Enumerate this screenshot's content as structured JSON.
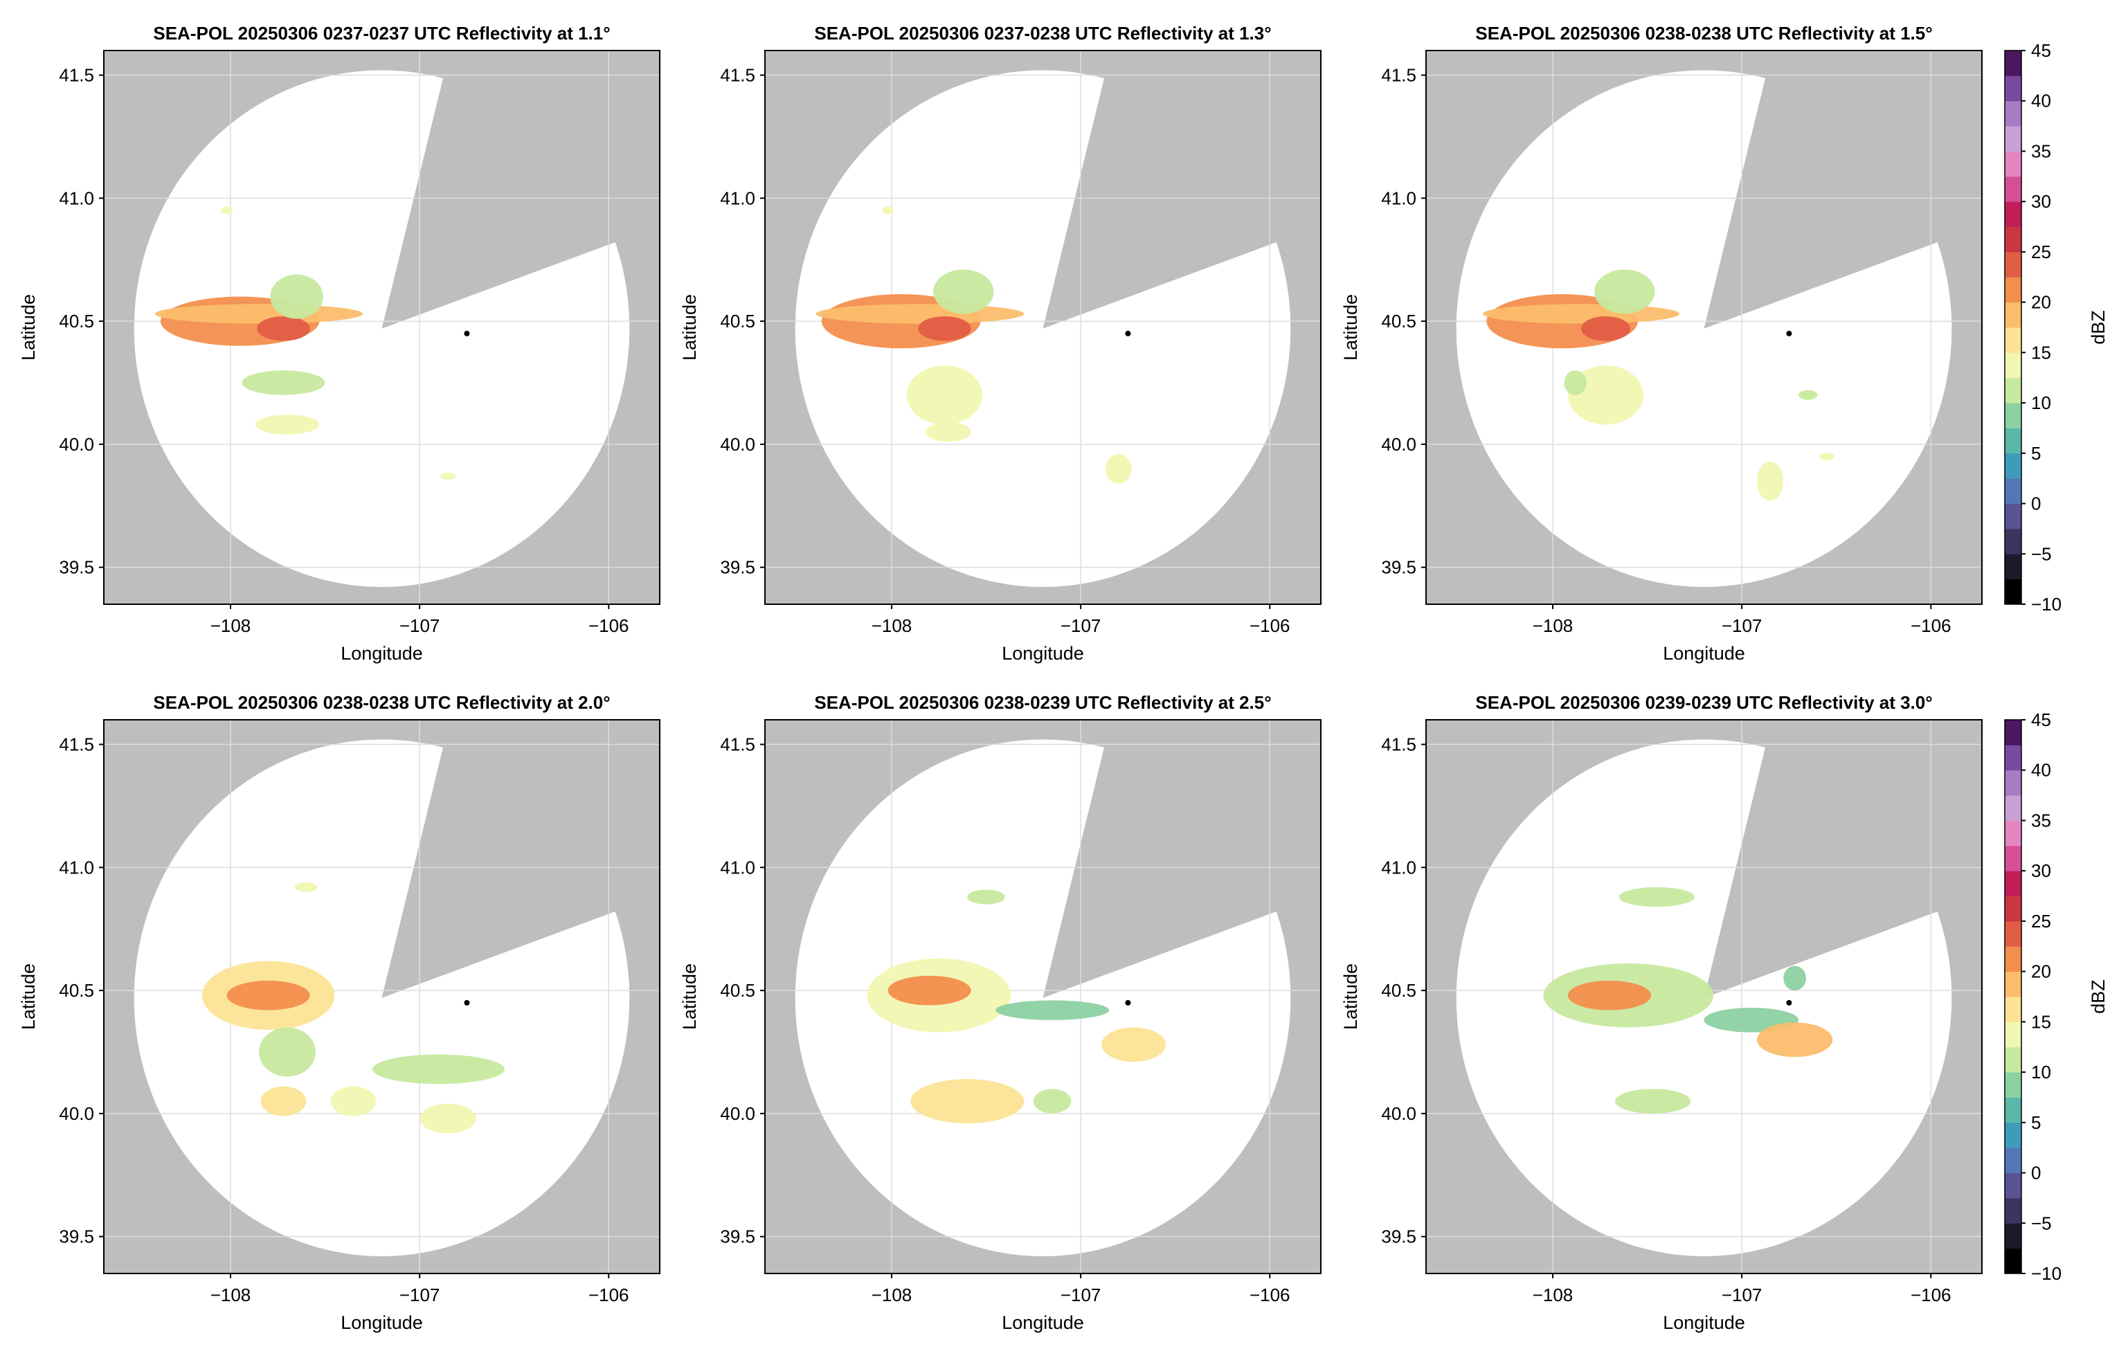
{
  "figure": {
    "colors": {
      "missing": "#bebebe",
      "background": "#ffffff",
      "grid": "#dddddd",
      "radar_marker": "#000000"
    }
  },
  "chart_data": [
    {
      "type": "heatmap",
      "title": "SEA-POL 20250306 0237-0237 UTC Reflectivity at 1.1°",
      "xlabel": "Longitude",
      "ylabel": "Latitude",
      "xlim": [
        -108.67,
        -105.73
      ],
      "ylim": [
        39.35,
        41.6
      ],
      "xticks": [
        -108,
        -107,
        -106
      ],
      "yticks": [
        39.5,
        40.0,
        40.5,
        41.0,
        41.5
      ],
      "grid": true,
      "radar_location": [
        -106.75,
        40.45
      ],
      "echoes": [
        {
          "lon": -107.95,
          "lat": 40.5,
          "rx": 0.42,
          "ry": 0.1,
          "dbz": 20
        },
        {
          "lon": -107.85,
          "lat": 40.53,
          "rx": 0.55,
          "ry": 0.04,
          "dbz": 18
        },
        {
          "lon": -107.72,
          "lat": 40.47,
          "rx": 0.14,
          "ry": 0.05,
          "dbz": 23
        },
        {
          "lon": -107.65,
          "lat": 40.6,
          "rx": 0.14,
          "ry": 0.09,
          "dbz": 12
        },
        {
          "lon": -107.72,
          "lat": 40.25,
          "rx": 0.22,
          "ry": 0.05,
          "dbz": 12
        },
        {
          "lon": -107.7,
          "lat": 40.08,
          "rx": 0.17,
          "ry": 0.04,
          "dbz": 13
        },
        {
          "lon": -108.02,
          "lat": 40.95,
          "rx": 0.03,
          "ry": 0.015,
          "dbz": 13
        },
        {
          "lon": -106.85,
          "lat": 39.87,
          "rx": 0.04,
          "ry": 0.015,
          "dbz": 13
        }
      ]
    },
    {
      "type": "heatmap",
      "title": "SEA-POL 20250306 0237-0238 UTC Reflectivity at 1.3°",
      "xlabel": "Longitude",
      "ylabel": "Latitude",
      "xlim": [
        -108.67,
        -105.73
      ],
      "ylim": [
        39.35,
        41.6
      ],
      "xticks": [
        -108,
        -107,
        -106
      ],
      "yticks": [
        39.5,
        40.0,
        40.5,
        41.0,
        41.5
      ],
      "grid": true,
      "radar_location": [
        -106.75,
        40.45
      ],
      "echoes": [
        {
          "lon": -107.95,
          "lat": 40.5,
          "rx": 0.42,
          "ry": 0.11,
          "dbz": 20
        },
        {
          "lon": -107.85,
          "lat": 40.53,
          "rx": 0.55,
          "ry": 0.04,
          "dbz": 18
        },
        {
          "lon": -107.72,
          "lat": 40.47,
          "rx": 0.14,
          "ry": 0.05,
          "dbz": 23
        },
        {
          "lon": -107.62,
          "lat": 40.62,
          "rx": 0.16,
          "ry": 0.09,
          "dbz": 12
        },
        {
          "lon": -107.72,
          "lat": 40.2,
          "rx": 0.2,
          "ry": 0.12,
          "dbz": 13
        },
        {
          "lon": -107.7,
          "lat": 40.05,
          "rx": 0.12,
          "ry": 0.04,
          "dbz": 14
        },
        {
          "lon": -106.8,
          "lat": 39.9,
          "rx": 0.07,
          "ry": 0.06,
          "dbz": 13
        },
        {
          "lon": -108.02,
          "lat": 40.95,
          "rx": 0.03,
          "ry": 0.015,
          "dbz": 13
        }
      ]
    },
    {
      "type": "heatmap",
      "title": "SEA-POL 20250306 0238-0238 UTC Reflectivity at 1.5°",
      "xlabel": "Longitude",
      "ylabel": "Latitude",
      "xlim": [
        -108.67,
        -105.73
      ],
      "ylim": [
        39.35,
        41.6
      ],
      "xticks": [
        -108,
        -107,
        -106
      ],
      "yticks": [
        39.5,
        40.0,
        40.5,
        41.0,
        41.5
      ],
      "grid": true,
      "radar_location": [
        -106.75,
        40.45
      ],
      "echoes": [
        {
          "lon": -107.95,
          "lat": 40.5,
          "rx": 0.4,
          "ry": 0.11,
          "dbz": 20
        },
        {
          "lon": -107.85,
          "lat": 40.53,
          "rx": 0.52,
          "ry": 0.04,
          "dbz": 18
        },
        {
          "lon": -107.72,
          "lat": 40.47,
          "rx": 0.13,
          "ry": 0.05,
          "dbz": 23
        },
        {
          "lon": -107.62,
          "lat": 40.62,
          "rx": 0.16,
          "ry": 0.09,
          "dbz": 12
        },
        {
          "lon": -107.72,
          "lat": 40.2,
          "rx": 0.2,
          "ry": 0.12,
          "dbz": 13
        },
        {
          "lon": -107.88,
          "lat": 40.25,
          "rx": 0.06,
          "ry": 0.05,
          "dbz": 12
        },
        {
          "lon": -106.85,
          "lat": 39.85,
          "rx": 0.07,
          "ry": 0.08,
          "dbz": 14
        },
        {
          "lon": -106.65,
          "lat": 40.2,
          "rx": 0.05,
          "ry": 0.02,
          "dbz": 11
        },
        {
          "lon": -106.55,
          "lat": 39.95,
          "rx": 0.04,
          "ry": 0.015,
          "dbz": 13
        }
      ]
    },
    {
      "type": "heatmap",
      "title": "SEA-POL 20250306 0238-0238 UTC Reflectivity at 2.0°",
      "xlabel": "Longitude",
      "ylabel": "Latitude",
      "xlim": [
        -108.67,
        -105.73
      ],
      "ylim": [
        39.35,
        41.6
      ],
      "xticks": [
        -108,
        -107,
        -106
      ],
      "yticks": [
        39.5,
        40.0,
        40.5,
        41.0,
        41.5
      ],
      "grid": true,
      "radar_location": [
        -106.75,
        40.45
      ],
      "echoes": [
        {
          "lon": -107.8,
          "lat": 40.48,
          "rx": 0.35,
          "ry": 0.14,
          "dbz": 15
        },
        {
          "lon": -107.8,
          "lat": 40.48,
          "rx": 0.22,
          "ry": 0.06,
          "dbz": 22
        },
        {
          "lon": -107.7,
          "lat": 40.25,
          "rx": 0.15,
          "ry": 0.1,
          "dbz": 11
        },
        {
          "lon": -107.72,
          "lat": 40.05,
          "rx": 0.12,
          "ry": 0.06,
          "dbz": 15
        },
        {
          "lon": -107.35,
          "lat": 40.05,
          "rx": 0.12,
          "ry": 0.06,
          "dbz": 13
        },
        {
          "lon": -106.9,
          "lat": 40.18,
          "rx": 0.35,
          "ry": 0.06,
          "dbz": 11
        },
        {
          "lon": -106.85,
          "lat": 39.98,
          "rx": 0.15,
          "ry": 0.06,
          "dbz": 14
        },
        {
          "lon": -107.6,
          "lat": 40.92,
          "rx": 0.06,
          "ry": 0.02,
          "dbz": 13
        }
      ]
    },
    {
      "type": "heatmap",
      "title": "SEA-POL 20250306 0238-0239 UTC Reflectivity at 2.5°",
      "xlabel": "Longitude",
      "ylabel": "Latitude",
      "xlim": [
        -108.67,
        -105.73
      ],
      "ylim": [
        39.35,
        41.6
      ],
      "xticks": [
        -108,
        -107,
        -106
      ],
      "yticks": [
        39.5,
        40.0,
        40.5,
        41.0,
        41.5
      ],
      "grid": true,
      "radar_location": [
        -106.75,
        40.45
      ],
      "echoes": [
        {
          "lon": -107.75,
          "lat": 40.48,
          "rx": 0.38,
          "ry": 0.15,
          "dbz": 14
        },
        {
          "lon": -107.8,
          "lat": 40.5,
          "rx": 0.22,
          "ry": 0.06,
          "dbz": 22
        },
        {
          "lon": -107.15,
          "lat": 40.42,
          "rx": 0.3,
          "ry": 0.04,
          "dbz": 8
        },
        {
          "lon": -106.72,
          "lat": 40.28,
          "rx": 0.17,
          "ry": 0.07,
          "dbz": 17
        },
        {
          "lon": -107.6,
          "lat": 40.05,
          "rx": 0.3,
          "ry": 0.09,
          "dbz": 15
        },
        {
          "lon": -107.15,
          "lat": 40.05,
          "rx": 0.1,
          "ry": 0.05,
          "dbz": 12
        },
        {
          "lon": -107.5,
          "lat": 40.88,
          "rx": 0.1,
          "ry": 0.03,
          "dbz": 12
        }
      ]
    },
    {
      "type": "heatmap",
      "title": "SEA-POL 20250306 0239-0239 UTC Reflectivity at 3.0°",
      "xlabel": "Longitude",
      "ylabel": "Latitude",
      "xlim": [
        -108.67,
        -105.73
      ],
      "ylim": [
        39.35,
        41.6
      ],
      "xticks": [
        -108,
        -107,
        -106
      ],
      "yticks": [
        39.5,
        40.0,
        40.5,
        41.0,
        41.5
      ],
      "grid": true,
      "radar_location": [
        -106.75,
        40.45
      ],
      "echoes": [
        {
          "lon": -107.6,
          "lat": 40.48,
          "rx": 0.45,
          "ry": 0.13,
          "dbz": 12
        },
        {
          "lon": -107.7,
          "lat": 40.48,
          "rx": 0.22,
          "ry": 0.06,
          "dbz": 20
        },
        {
          "lon": -106.95,
          "lat": 40.38,
          "rx": 0.25,
          "ry": 0.05,
          "dbz": 9
        },
        {
          "lon": -106.72,
          "lat": 40.3,
          "rx": 0.2,
          "ry": 0.07,
          "dbz": 18
        },
        {
          "lon": -107.47,
          "lat": 40.05,
          "rx": 0.2,
          "ry": 0.05,
          "dbz": 12
        },
        {
          "lon": -107.45,
          "lat": 40.88,
          "rx": 0.2,
          "ry": 0.04,
          "dbz": 11
        },
        {
          "lon": -106.72,
          "lat": 40.55,
          "rx": 0.06,
          "ry": 0.05,
          "dbz": 8
        }
      ]
    }
  ],
  "colorbar": {
    "label": "dBZ",
    "range": [
      -10,
      45
    ],
    "ticks": [
      "-10",
      "-5",
      "0",
      "5",
      "10",
      "15",
      "20",
      "25",
      "30",
      "35",
      "40",
      "45"
    ],
    "colors": [
      "#000000",
      "#1b1a2b",
      "#3b3660",
      "#5a5394",
      "#5277b6",
      "#3f9bbb",
      "#59b8a9",
      "#8cd1a2",
      "#c7e99f",
      "#f1f7b2",
      "#fce495",
      "#fbbd6c",
      "#f38e4e",
      "#e25d46",
      "#cb3643",
      "#c21e5a",
      "#d64e95",
      "#e486c0",
      "#c8a0d6",
      "#a77cc4",
      "#7a4aa0",
      "#4a1760"
    ]
  }
}
